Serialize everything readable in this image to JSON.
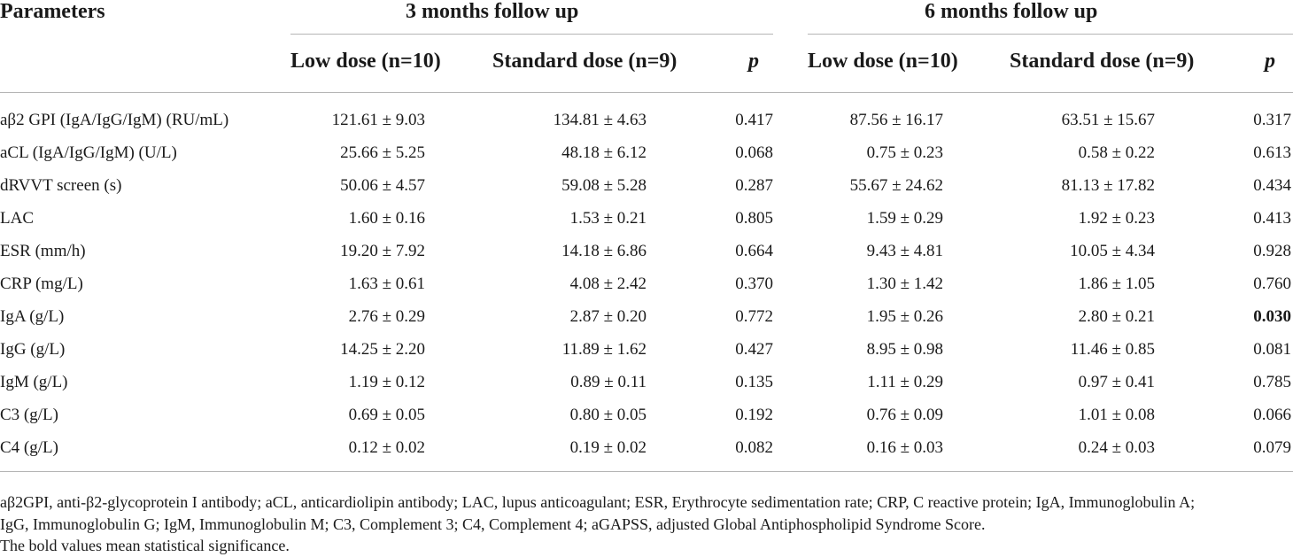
{
  "table": {
    "header": {
      "parameters": "Parameters",
      "group3": "3 months follow up",
      "group6": "6 months follow up",
      "low3": "Low dose (n=10)",
      "std3": "Standard dose (n=9)",
      "p3": "p",
      "low6": "Low dose (n=10)",
      "std6": "Standard dose (n=9)",
      "p6": "p"
    },
    "rows": [
      {
        "param": "aβ2 GPI (IgA/IgG/IgM) (RU/mL)",
        "low3": "121.61 ± 9.03",
        "std3": "134.81 ± 4.63",
        "p3": "0.417",
        "low6": "87.56 ± 16.17",
        "std6": "63.51 ± 15.67",
        "p6": "0.317"
      },
      {
        "param": "aCL (IgA/IgG/IgM) (U/L)",
        "low3": "25.66 ± 5.25",
        "std3": "48.18 ± 6.12",
        "p3": "0.068",
        "low6": "0.75 ± 0.23",
        "std6": "0.58 ± 0.22",
        "p6": "0.613"
      },
      {
        "param": "dRVVT screen (s)",
        "low3": "50.06 ± 4.57",
        "std3": "59.08 ± 5.28",
        "p3": "0.287",
        "low6": "55.67 ± 24.62",
        "std6": "81.13 ± 17.82",
        "p6": "0.434"
      },
      {
        "param": "LAC",
        "low3": "1.60 ± 0.16",
        "std3": "1.53 ± 0.21",
        "p3": "0.805",
        "low6": "1.59 ± 0.29",
        "std6": "1.92 ± 0.23",
        "p6": "0.413"
      },
      {
        "param": "ESR (mm/h)",
        "low3": "19.20 ± 7.92",
        "std3": "14.18 ± 6.86",
        "p3": "0.664",
        "low6": "9.43 ± 4.81",
        "std6": "10.05 ± 4.34",
        "p6": "0.928"
      },
      {
        "param": "CRP (mg/L)",
        "low3": "1.63 ± 0.61",
        "std3": "4.08 ± 2.42",
        "p3": "0.370",
        "low6": "1.30 ± 1.42",
        "std6": "1.86 ± 1.05",
        "p6": "0.760"
      },
      {
        "param": "IgA (g/L)",
        "low3": "2.76 ± 0.29",
        "std3": "2.87 ± 0.20",
        "p3": "0.772",
        "low6": "1.95 ± 0.26",
        "std6": "2.80 ± 0.21",
        "p6": "0.030"
      },
      {
        "param": "IgG (g/L)",
        "low3": "14.25 ± 2.20",
        "std3": "11.89 ± 1.62",
        "p3": "0.427",
        "low6": "8.95 ± 0.98",
        "std6": "11.46 ± 0.85",
        "p6": "0.081"
      },
      {
        "param": "IgM (g/L)",
        "low3": "1.19 ± 0.12",
        "std3": "0.89 ± 0.11",
        "p3": "0.135",
        "low6": "1.11 ± 0.29",
        "std6": "0.97 ± 0.41",
        "p6": "0.785"
      },
      {
        "param": "C3 (g/L)",
        "low3": "0.69 ± 0.05",
        "std3": "0.80 ± 0.05",
        "p3": "0.192",
        "low6": "0.76 ± 0.09",
        "std6": "1.01 ± 0.08",
        "p6": "0.066"
      },
      {
        "param": "C4 (g/L)",
        "low3": "0.12 ± 0.02",
        "std3": "0.19 ± 0.02",
        "p3": "0.082",
        "low6": "0.16 ± 0.03",
        "std6": "0.24 ± 0.03",
        "p6": "0.079"
      }
    ]
  },
  "footnotes": {
    "line1": "aβ2GPI, anti-β2-glycoprotein I antibody; aCL, anticardiolipin antibody; LAC, lupus anticoagulant; ESR, Erythrocyte sedimentation rate; CRP, C reactive protein; IgA, Immunoglobulin A;",
    "line2": "IgG, Immunoglobulin G; IgM, Immunoglobulin M; C3, Complement 3; C4, Complement 4; aGAPSS, adjusted Global Antiphospholipid Syndrome Score.",
    "line3": "The bold values mean statistical significance."
  }
}
